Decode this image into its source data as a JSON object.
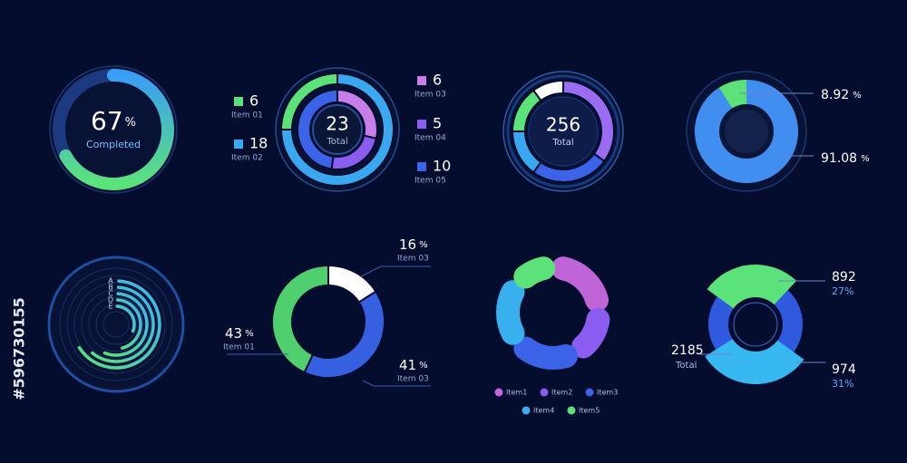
{
  "watermark_id": "#596730155",
  "chart_data": [
    {
      "type": "progress",
      "value": 67,
      "unit": "%",
      "label": "Completed",
      "ylim": [
        0,
        100
      ]
    },
    {
      "type": "nested",
      "center_value": 23,
      "center_label": "Total",
      "rings": [
        {
          "categories": [
            "Item 01",
            "Item 02"
          ],
          "values": [
            6,
            18
          ],
          "colors": [
            "#5be37a",
            "#3aa8f0"
          ]
        },
        {
          "categories": [
            "Item 03",
            "Item 04",
            "Item 05"
          ],
          "values": [
            6,
            5,
            10
          ],
          "colors": [
            "#c77ee8",
            "#8a5cf0",
            "#3a63e8"
          ]
        }
      ]
    },
    {
      "type": "donut",
      "center_value": 256,
      "center_label": "Total",
      "categories": [
        null,
        null,
        null,
        null,
        null
      ],
      "values": [
        10,
        35,
        25,
        15,
        15
      ],
      "colors": [
        "#ffffff",
        "#9a6cf2",
        "#3a63e8",
        "#3aa8f0",
        "#5be37a"
      ]
    },
    {
      "type": "pie",
      "categories": [
        null,
        null
      ],
      "values": [
        8.92,
        91.08
      ],
      "unit": "%",
      "colors": [
        "#5be37a",
        "#3f8ef0"
      ]
    },
    {
      "type": "radial",
      "categories": [
        "A",
        "B",
        "C",
        "D",
        "E"
      ],
      "values": [
        65,
        60,
        55,
        45,
        30
      ],
      "ylim": [
        0,
        100
      ]
    },
    {
      "type": "split",
      "categories": [
        "Item 03",
        "Item 03",
        "Item 01"
      ],
      "values": [
        16,
        41,
        43
      ],
      "unit": "%",
      "colors": [
        "#ffffff",
        "#3560e0",
        "#4fcf6e"
      ]
    },
    {
      "type": "rounded",
      "categories": [
        "Item1",
        "Item2",
        "Item3",
        "Item4",
        "Item5"
      ],
      "values": [
        24,
        18,
        22,
        22,
        14
      ],
      "colors": [
        "#c065d8",
        "#8a5cf0",
        "#3a63e8",
        "#38b0ee",
        "#5be37a"
      ]
    },
    {
      "type": "exploded",
      "categories": [
        null,
        null
      ],
      "values": [
        27,
        31
      ],
      "value_labels": [
        "27%",
        "31%"
      ],
      "amounts": [
        892,
        974
      ],
      "colors": [
        "#5be37a",
        "#38b8f0"
      ],
      "base_color": "#2f5ae0",
      "total_value": 2185,
      "total_label": "Total"
    }
  ]
}
